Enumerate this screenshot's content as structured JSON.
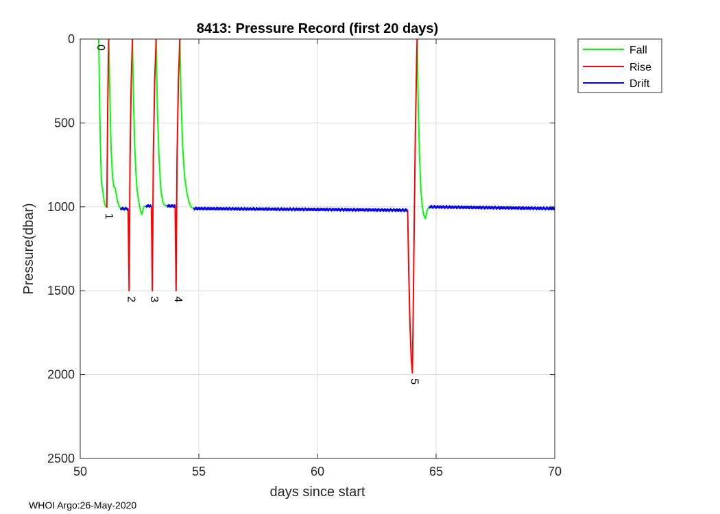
{
  "chart_data": {
    "type": "line",
    "title": "8413: Pressure Record (first 20 days)",
    "xlabel": "days since start",
    "ylabel": "Pressure(dbar)",
    "xlim": [
      50,
      70
    ],
    "ylim": [
      0,
      2500
    ],
    "y_reversed": true,
    "grid": true,
    "xticks": [
      50,
      55,
      60,
      65,
      70
    ],
    "yticks": [
      0,
      500,
      1000,
      1500,
      2000,
      2500
    ],
    "legend": {
      "position": "top-right-outside",
      "entries": [
        "Fall",
        "Rise",
        "Drift"
      ]
    },
    "colors": {
      "Fall": "#00ff00",
      "Rise": "#ff0000",
      "Drift": "#0000ff"
    },
    "series": [
      {
        "name": "Fall",
        "segments": [
          [
            [
              50.78,
              0
            ],
            [
              50.82,
              400
            ],
            [
              50.86,
              700
            ],
            [
              50.9,
              860
            ],
            [
              50.95,
              900
            ],
            [
              51.0,
              960
            ],
            [
              51.05,
              990
            ],
            [
              51.12,
              1005
            ]
          ],
          [
            [
              51.2,
              0
            ],
            [
              51.25,
              350
            ],
            [
              51.3,
              650
            ],
            [
              51.36,
              820
            ],
            [
              51.42,
              880
            ],
            [
              51.48,
              890
            ],
            [
              51.55,
              950
            ],
            [
              51.62,
              990
            ],
            [
              51.7,
              1010
            ]
          ],
          [
            [
              52.2,
              0
            ],
            [
              52.25,
              400
            ],
            [
              52.3,
              650
            ],
            [
              52.35,
              800
            ],
            [
              52.4,
              900
            ],
            [
              52.48,
              980
            ],
            [
              52.55,
              1030
            ],
            [
              52.6,
              1045
            ],
            [
              52.68,
              1000
            ],
            [
              52.75,
              995
            ]
          ],
          [
            [
              53.2,
              0
            ],
            [
              53.25,
              400
            ],
            [
              53.32,
              700
            ],
            [
              53.4,
              900
            ],
            [
              53.48,
              970
            ],
            [
              53.55,
              990
            ],
            [
              53.65,
              995
            ]
          ],
          [
            [
              54.2,
              0
            ],
            [
              54.25,
              350
            ],
            [
              54.32,
              650
            ],
            [
              54.4,
              820
            ],
            [
              54.5,
              920
            ],
            [
              54.6,
              980
            ],
            [
              54.7,
              1005
            ],
            [
              54.78,
              1010
            ]
          ],
          [
            [
              64.2,
              0
            ],
            [
              64.25,
              400
            ],
            [
              64.3,
              700
            ],
            [
              64.36,
              900
            ],
            [
              64.42,
              1000
            ],
            [
              64.48,
              1050
            ],
            [
              64.55,
              1070
            ],
            [
              64.62,
              1020
            ],
            [
              64.7,
              1000
            ]
          ]
        ]
      },
      {
        "name": "Rise",
        "segments": [
          [
            [
              51.12,
              1005
            ],
            [
              51.16,
              400
            ],
            [
              51.2,
              0
            ]
          ],
          [
            [
              52.02,
              1010
            ],
            [
              52.06,
              1500
            ],
            [
              52.1,
              700
            ],
            [
              52.15,
              250
            ],
            [
              52.2,
              0
            ]
          ],
          [
            [
              53.0,
              995
            ],
            [
              53.04,
              1500
            ],
            [
              53.08,
              700
            ],
            [
              53.14,
              250
            ],
            [
              53.2,
              0
            ]
          ],
          [
            [
              54.0,
              995
            ],
            [
              54.04,
              1500
            ],
            [
              54.08,
              700
            ],
            [
              54.14,
              250
            ],
            [
              54.2,
              0
            ]
          ],
          [
            [
              63.8,
              1020
            ],
            [
              63.85,
              1400
            ],
            [
              63.9,
              1700
            ],
            [
              63.95,
              1900
            ],
            [
              64.0,
              1990
            ],
            [
              64.03,
              1700
            ],
            [
              64.07,
              1200
            ],
            [
              64.12,
              600
            ],
            [
              64.17,
              200
            ],
            [
              64.2,
              0
            ]
          ]
        ]
      },
      {
        "name": "Drift",
        "segments": [
          [
            [
              51.7,
              1010
            ],
            [
              52.02,
              1012
            ]
          ],
          [
            [
              52.75,
              995
            ],
            [
              53.0,
              995
            ]
          ],
          [
            [
              53.65,
              995
            ],
            [
              54.0,
              995
            ]
          ],
          [
            [
              54.78,
              1010
            ],
            [
              63.8,
              1020
            ]
          ],
          [
            [
              64.7,
              1000
            ],
            [
              70.0,
              1010
            ]
          ]
        ]
      }
    ],
    "cycle_labels": [
      {
        "text": "0",
        "x": 50.78,
        "p": 0
      },
      {
        "text": "1",
        "x": 51.12,
        "p": 1005
      },
      {
        "text": "2",
        "x": 52.06,
        "p": 1500
      },
      {
        "text": "3",
        "x": 53.04,
        "p": 1500
      },
      {
        "text": "4",
        "x": 54.04,
        "p": 1500
      },
      {
        "text": "5",
        "x": 64.0,
        "p": 1990
      }
    ]
  },
  "footer": "WHOI Argo:26-May-2020"
}
